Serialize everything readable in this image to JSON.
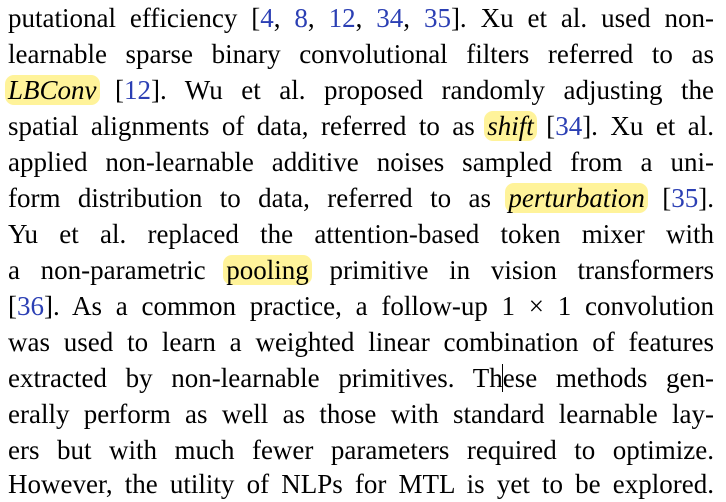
{
  "paragraph": {
    "l1": {
      "a": "putational efficiency [",
      "c1": "4",
      "s1": ", ",
      "c2": "8",
      "s2": ", ",
      "c3": "12",
      "s3": ", ",
      "c4": "34",
      "s4": ", ",
      "c5": "35",
      "b": "]. Xu et al. used non-"
    },
    "l2": {
      "a": "learnable sparse binary convolutional filters referred to as"
    },
    "l3": {
      "hl": "LBConv",
      "a": " [",
      "c1": "12",
      "b": "]. Wu et al. proposed randomly adjusting the"
    },
    "l4": {
      "a": "spatial alignments of data, referred to as ",
      "hl": "shift",
      "b": " [",
      "c1": "34",
      "c": "]. Xu et al."
    },
    "l5": {
      "a": "applied non-learnable additive noises sampled from a uni-"
    },
    "l6": {
      "a": "form distribution to data, referred to as ",
      "hl": "perturbation",
      "b": " [",
      "c1": "35",
      "c": "]."
    },
    "l7": {
      "a": "Yu et al. replaced the attention-based token mixer with"
    },
    "l8": {
      "a": "a non-parametric ",
      "hl": "pooling",
      "b": " primitive in vision transformers"
    },
    "l9": {
      "a": "[",
      "c1": "36",
      "b": "]. As a common practice, a follow-up 1 × 1 convolution"
    },
    "l10": {
      "a": "was used to learn a weighted linear combination of features"
    },
    "l11": {
      "a": "extracted by non-learnable primitives. Th",
      "b": "ese methods gen-"
    },
    "l12": {
      "a": "erally perform as well as those with standard learnable lay-"
    },
    "l13": {
      "a": "ers but with much fewer parameters required to optimize."
    },
    "l14": {
      "a": "However, the utility of NLPs for MTL is yet to be explored."
    }
  },
  "colors": {
    "citation": "#2b3fb4",
    "highlight": "#fff39a",
    "text": "#000000"
  }
}
